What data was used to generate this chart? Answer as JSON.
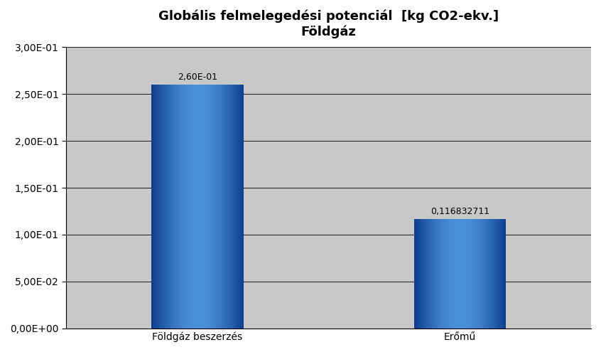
{
  "title_line1": "Globális felmelegedési potenciál  [kg CO2-ekv.]",
  "title_line2": "Földgáz",
  "categories": [
    "Földgáz beszerzés",
    "Erőmű"
  ],
  "values": [
    0.26,
    0.116832711
  ],
  "bar_labels": [
    "2,60E-01",
    "0,116832711"
  ],
  "color_dark_edge": "#0d3d8c",
  "color_mid_light": "#4a90d9",
  "figure_bg": "#ffffff",
  "plot_bg": "#c8c8c8",
  "ylim": [
    0.0,
    0.3
  ],
  "yticks": [
    0.0,
    0.05,
    0.1,
    0.15,
    0.2,
    0.25,
    0.3
  ],
  "ytick_labels": [
    "0,00E+00",
    "5,00E-02",
    "1,00E-01",
    "1,50E-01",
    "2,00E-01",
    "2,50E-01",
    "3,00E-01"
  ],
  "title_fontsize": 13,
  "tick_fontsize": 10,
  "label_fontsize": 10,
  "bar_label_fontsize": 9,
  "bar_width": 0.35,
  "xlim": [
    -0.5,
    1.5
  ]
}
